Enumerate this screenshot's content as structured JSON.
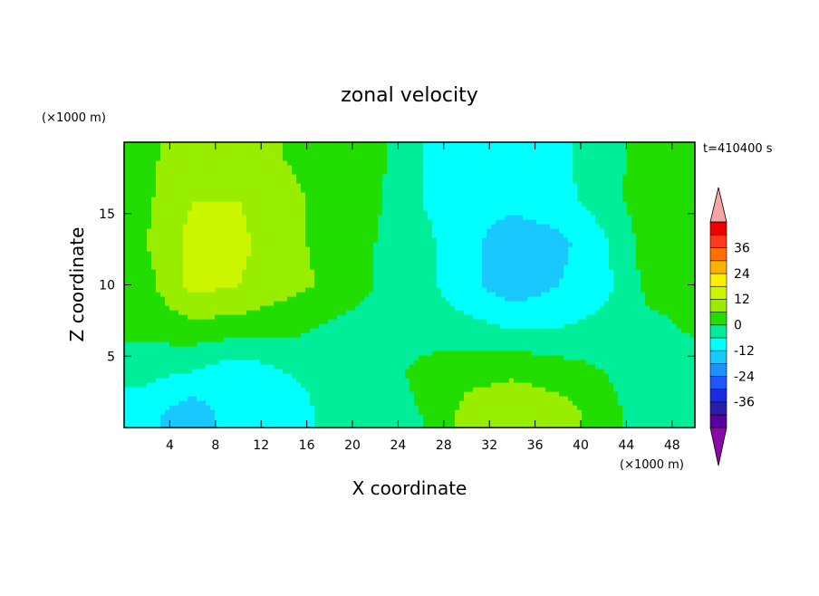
{
  "chart_data": {
    "type": "heatmap",
    "title": "zonal velocity",
    "xlabel": "X coordinate",
    "ylabel": "Z coordinate",
    "x_unit": "(×1000 m)",
    "y_unit": "(×1000 m)",
    "time_label": "t=410400 s",
    "xlim": [
      0,
      50
    ],
    "ylim": [
      0,
      20
    ],
    "x_ticks": [
      4,
      8,
      12,
      16,
      20,
      24,
      28,
      32,
      36,
      40,
      44,
      48
    ],
    "y_ticks": [
      5,
      10,
      15
    ],
    "grid": false,
    "colorbar": {
      "levels": [
        -42,
        -36,
        -30,
        -24,
        -18,
        -12,
        -6,
        0,
        6,
        12,
        18,
        24,
        30,
        36,
        42
      ],
      "colors": [
        "#5a00a0",
        "#2a1ea8",
        "#1b2ce0",
        "#1d55ff",
        "#1e90ff",
        "#19c8ff",
        "#00ffff",
        "#00ee99",
        "#22dd00",
        "#99ee00",
        "#ccf500",
        "#ffee00",
        "#ffb000",
        "#ff7000",
        "#ff3a1a",
        "#ee0000"
      ],
      "extend_low_color": "#8a0aa8",
      "extend_high_color": "#f4a6a6",
      "tick_labels": [
        "36",
        "24",
        "12",
        "0",
        "-12",
        "-24",
        "-36"
      ]
    },
    "field": {
      "x": [
        2,
        6,
        10,
        14,
        18,
        22,
        26,
        30,
        34,
        38,
        42,
        46,
        50
      ],
      "z": [
        19,
        16,
        13,
        10,
        7,
        4,
        1
      ],
      "u": [
        [
          4,
          12,
          10,
          6,
          4,
          2,
          -6,
          -10,
          -10,
          -8,
          -2,
          2,
          3
        ],
        [
          5,
          12,
          12,
          7,
          5,
          1,
          -6,
          -10,
          -10,
          -8,
          -3,
          4,
          3
        ],
        [
          6,
          14,
          14,
          7,
          5,
          0,
          -4,
          -10,
          -16,
          -14,
          -7,
          3,
          2
        ],
        [
          4,
          14,
          12,
          8,
          5,
          0,
          -4,
          -10,
          -16,
          -12,
          -8,
          2,
          3
        ],
        [
          2,
          4,
          3,
          2,
          -1,
          -3,
          -2,
          -4,
          -6,
          -6,
          -4,
          -2,
          1
        ],
        [
          -4,
          -6,
          -10,
          -6,
          -3,
          -2,
          1,
          4,
          5,
          3,
          0,
          -4,
          -3
        ],
        [
          -10,
          -16,
          -8,
          -12,
          -3,
          -2,
          0,
          8,
          10,
          9,
          3,
          -4,
          -5
        ]
      ]
    }
  }
}
